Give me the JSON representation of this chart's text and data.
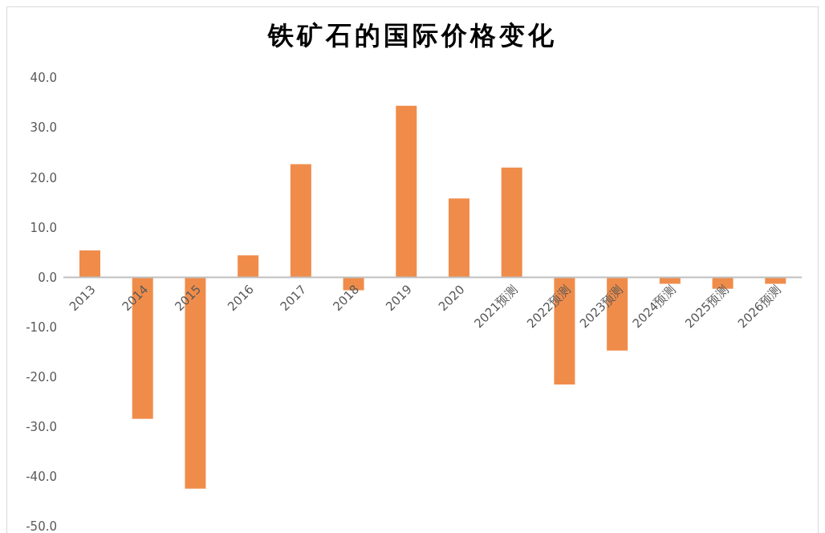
{
  "chart_data": {
    "type": "bar",
    "title": "铁矿石的国际价格变化",
    "categories": [
      "2013",
      "2014",
      "2015",
      "2016",
      "2017",
      "2018",
      "2019",
      "2020",
      "2021预测",
      "2022预测",
      "2023预测",
      "2024预测",
      "2025预测",
      "2026预测"
    ],
    "values": [
      5.4,
      -28.4,
      -42.4,
      4.4,
      22.7,
      -2.6,
      34.4,
      15.8,
      22.0,
      -21.5,
      -14.7,
      -1.3,
      -2.3,
      -1.3
    ],
    "color": "#f08c4a",
    "ylim": [
      -50,
      40
    ],
    "yticks": [
      {
        "value": -50,
        "label": "-50.0"
      },
      {
        "value": -40,
        "label": "-40.0"
      },
      {
        "value": -30,
        "label": "-30.0"
      },
      {
        "value": -20,
        "label": "-20.0"
      },
      {
        "value": -10,
        "label": "-10.0"
      },
      {
        "value": 0,
        "label": "0.0"
      },
      {
        "value": 10,
        "label": "10.0"
      },
      {
        "value": 20,
        "label": "20.0"
      },
      {
        "value": 30,
        "label": "30.0"
      },
      {
        "value": 40,
        "label": "40.0"
      }
    ],
    "grid": false,
    "legend": false
  }
}
